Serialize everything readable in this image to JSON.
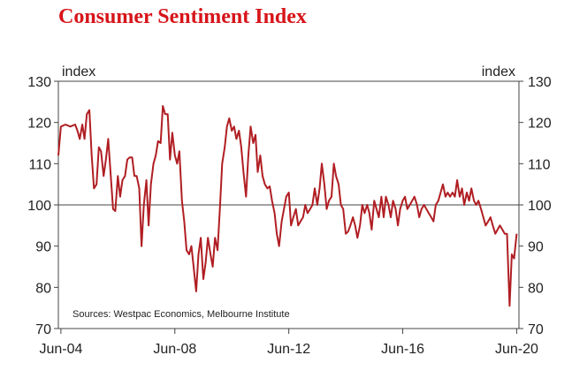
{
  "chart_data": {
    "type": "line",
    "title": "Consumer Sentiment Index",
    "ylabel_left": "index",
    "ylabel_right": "index",
    "ylim": [
      70,
      130
    ],
    "yticks": [
      70,
      80,
      90,
      100,
      110,
      120,
      130
    ],
    "xlim": [
      2004.33,
      2020.5
    ],
    "xticks": [
      {
        "label": "Jun-04",
        "value": 2004.42
      },
      {
        "label": "Jun-08",
        "value": 2008.42
      },
      {
        "label": "Jun-12",
        "value": 2012.42
      },
      {
        "label": "Jun-16",
        "value": 2016.42
      },
      {
        "label": "Jun-20",
        "value": 2020.42
      }
    ],
    "reference_line": 100,
    "source": "Sources: Westpac Economics, Melbourne Institute",
    "series": [
      {
        "name": "Consumer Sentiment Index",
        "color": "#b01e23",
        "points": [
          [
            2004.33,
            112
          ],
          [
            2004.42,
            119
          ],
          [
            2004.58,
            119.5
          ],
          [
            2004.75,
            119
          ],
          [
            2004.92,
            119.5
          ],
          [
            2005.0,
            118
          ],
          [
            2005.08,
            116
          ],
          [
            2005.17,
            119.5
          ],
          [
            2005.25,
            116
          ],
          [
            2005.33,
            122
          ],
          [
            2005.42,
            123
          ],
          [
            2005.5,
            112
          ],
          [
            2005.58,
            104
          ],
          [
            2005.67,
            105
          ],
          [
            2005.75,
            114
          ],
          [
            2005.83,
            113
          ],
          [
            2005.92,
            107
          ],
          [
            2006.0,
            111
          ],
          [
            2006.08,
            116
          ],
          [
            2006.17,
            107
          ],
          [
            2006.25,
            99
          ],
          [
            2006.33,
            98.5
          ],
          [
            2006.42,
            107
          ],
          [
            2006.5,
            102
          ],
          [
            2006.58,
            106
          ],
          [
            2006.67,
            107
          ],
          [
            2006.75,
            111
          ],
          [
            2006.83,
            111.5
          ],
          [
            2006.92,
            111.5
          ],
          [
            2007.0,
            107
          ],
          [
            2007.08,
            107
          ],
          [
            2007.17,
            104
          ],
          [
            2007.25,
            90
          ],
          [
            2007.33,
            100
          ],
          [
            2007.42,
            106
          ],
          [
            2007.5,
            95
          ],
          [
            2007.58,
            105
          ],
          [
            2007.67,
            110
          ],
          [
            2007.75,
            112
          ],
          [
            2007.83,
            115.5
          ],
          [
            2007.92,
            115
          ],
          [
            2008.0,
            124
          ],
          [
            2008.08,
            122
          ],
          [
            2008.17,
            122
          ],
          [
            2008.25,
            111
          ],
          [
            2008.33,
            117.5
          ],
          [
            2008.42,
            112
          ],
          [
            2008.5,
            110
          ],
          [
            2008.58,
            113
          ],
          [
            2008.67,
            101
          ],
          [
            2008.75,
            96
          ],
          [
            2008.83,
            89
          ],
          [
            2008.92,
            88
          ],
          [
            2009.0,
            90
          ],
          [
            2009.08,
            85
          ],
          [
            2009.17,
            79
          ],
          [
            2009.25,
            88
          ],
          [
            2009.33,
            92
          ],
          [
            2009.42,
            82
          ],
          [
            2009.5,
            86
          ],
          [
            2009.58,
            92
          ],
          [
            2009.67,
            88
          ],
          [
            2009.75,
            85
          ],
          [
            2009.83,
            92
          ],
          [
            2009.92,
            89
          ],
          [
            2010.0,
            99
          ],
          [
            2010.08,
            110
          ],
          [
            2010.17,
            114
          ],
          [
            2010.25,
            119
          ],
          [
            2010.33,
            121
          ],
          [
            2010.42,
            118
          ],
          [
            2010.5,
            119
          ],
          [
            2010.58,
            116
          ],
          [
            2010.67,
            118
          ],
          [
            2010.75,
            114
          ],
          [
            2010.83,
            108
          ],
          [
            2010.92,
            102
          ],
          [
            2011.0,
            112
          ],
          [
            2011.08,
            119
          ],
          [
            2011.17,
            115
          ],
          [
            2011.25,
            117
          ],
          [
            2011.33,
            108
          ],
          [
            2011.42,
            112
          ],
          [
            2011.5,
            107
          ],
          [
            2011.58,
            105
          ],
          [
            2011.67,
            104
          ],
          [
            2011.75,
            104.5
          ],
          [
            2011.83,
            101
          ],
          [
            2011.92,
            98
          ],
          [
            2012.0,
            93
          ],
          [
            2012.08,
            90
          ],
          [
            2012.17,
            96
          ],
          [
            2012.25,
            99
          ],
          [
            2012.33,
            102
          ],
          [
            2012.42,
            103
          ],
          [
            2012.5,
            95
          ],
          [
            2012.58,
            97
          ],
          [
            2012.67,
            99
          ],
          [
            2012.75,
            95
          ],
          [
            2012.83,
            96
          ],
          [
            2012.92,
            97
          ],
          [
            2013.0,
            100
          ],
          [
            2013.08,
            98
          ],
          [
            2013.17,
            99
          ],
          [
            2013.25,
            100
          ],
          [
            2013.33,
            104
          ],
          [
            2013.42,
            100
          ],
          [
            2013.5,
            104
          ],
          [
            2013.58,
            110
          ],
          [
            2013.67,
            105
          ],
          [
            2013.75,
            99
          ],
          [
            2013.83,
            101
          ],
          [
            2013.92,
            102
          ],
          [
            2014.0,
            110
          ],
          [
            2014.08,
            107
          ],
          [
            2014.17,
            105
          ],
          [
            2014.25,
            100
          ],
          [
            2014.33,
            99
          ],
          [
            2014.42,
            93
          ],
          [
            2014.5,
            93.5
          ],
          [
            2014.58,
            95
          ],
          [
            2014.67,
            97
          ],
          [
            2014.75,
            95
          ],
          [
            2014.83,
            92
          ],
          [
            2014.92,
            95
          ],
          [
            2015.0,
            100
          ],
          [
            2015.08,
            98
          ],
          [
            2015.17,
            100
          ],
          [
            2015.25,
            98
          ],
          [
            2015.33,
            94
          ],
          [
            2015.42,
            101
          ],
          [
            2015.5,
            99
          ],
          [
            2015.58,
            97
          ],
          [
            2015.67,
            102
          ],
          [
            2015.75,
            97
          ],
          [
            2015.83,
            102
          ],
          [
            2015.92,
            100
          ],
          [
            2016.0,
            97
          ],
          [
            2016.08,
            101
          ],
          [
            2016.17,
            99
          ],
          [
            2016.25,
            95
          ],
          [
            2016.33,
            99
          ],
          [
            2016.42,
            101
          ],
          [
            2016.5,
            102
          ],
          [
            2016.58,
            99
          ],
          [
            2016.67,
            100
          ],
          [
            2016.75,
            101
          ],
          [
            2016.83,
            102
          ],
          [
            2016.92,
            100
          ],
          [
            2017.0,
            97
          ],
          [
            2017.08,
            99
          ],
          [
            2017.17,
            100
          ],
          [
            2017.25,
            99
          ],
          [
            2017.33,
            98
          ],
          [
            2017.42,
            97
          ],
          [
            2017.5,
            96
          ],
          [
            2017.58,
            100
          ],
          [
            2017.67,
            101
          ],
          [
            2017.75,
            103
          ],
          [
            2017.83,
            105
          ],
          [
            2017.92,
            102
          ],
          [
            2018.0,
            103
          ],
          [
            2018.08,
            102
          ],
          [
            2018.17,
            103
          ],
          [
            2018.25,
            102
          ],
          [
            2018.33,
            106
          ],
          [
            2018.42,
            102
          ],
          [
            2018.5,
            104
          ],
          [
            2018.58,
            100
          ],
          [
            2018.67,
            103
          ],
          [
            2018.75,
            101
          ],
          [
            2018.83,
            104
          ],
          [
            2018.92,
            101
          ],
          [
            2019.0,
            100
          ],
          [
            2019.08,
            101
          ],
          [
            2019.17,
            99
          ],
          [
            2019.25,
            97
          ],
          [
            2019.33,
            95
          ],
          [
            2019.42,
            96
          ],
          [
            2019.5,
            97
          ],
          [
            2019.58,
            95
          ],
          [
            2019.67,
            93
          ],
          [
            2019.75,
            94
          ],
          [
            2019.83,
            95
          ],
          [
            2019.92,
            94
          ],
          [
            2020.0,
            93
          ],
          [
            2020.08,
            93
          ],
          [
            2020.17,
            75.5
          ],
          [
            2020.25,
            88
          ],
          [
            2020.33,
            87
          ],
          [
            2020.42,
            93
          ]
        ]
      }
    ]
  }
}
